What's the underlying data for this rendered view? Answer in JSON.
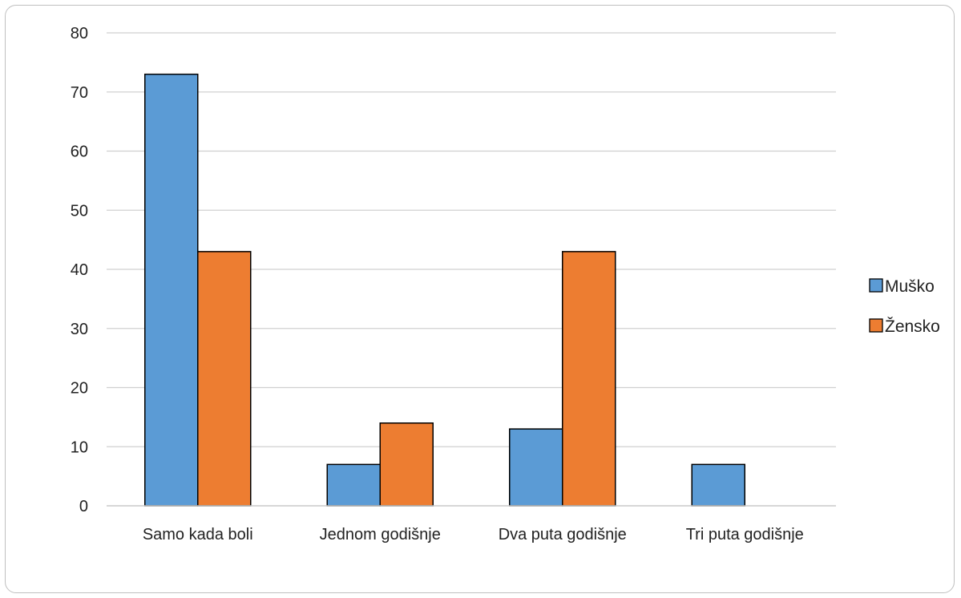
{
  "chart_data": {
    "type": "bar",
    "categories": [
      "Samo kada boli",
      "Jednom godišnje",
      "Dva puta godišnje",
      "Tri puta godišnje"
    ],
    "series": [
      {
        "name": "Muško",
        "values": [
          73,
          7,
          13,
          7
        ],
        "color": "#5b9bd5"
      },
      {
        "name": "Žensko",
        "values": [
          43,
          14,
          43,
          0
        ],
        "color": "#ed7d31"
      }
    ],
    "ylim": [
      0,
      80
    ],
    "yticks": [
      "0",
      "10",
      "20",
      "30",
      "40",
      "50",
      "60",
      "70",
      "80"
    ],
    "grid": true,
    "legend": "right",
    "title": "",
    "xlabel": "",
    "ylabel": ""
  }
}
